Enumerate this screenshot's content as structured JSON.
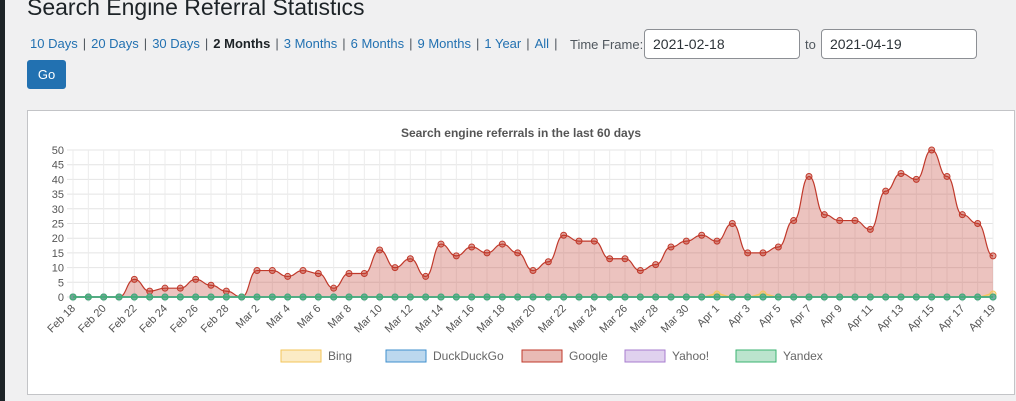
{
  "page": {
    "title": "Search Engine Referral Statistics"
  },
  "range_nav": {
    "links": [
      "10 Days",
      "20 Days",
      "30 Days",
      "2 Months",
      "3 Months",
      "6 Months",
      "9 Months",
      "1 Year",
      "All"
    ],
    "current": "2 Months",
    "separator": "|",
    "timeframe_label": "Time Frame:",
    "from_value": "2021-02-18",
    "to_label": "to",
    "to_value": "2021-04-19",
    "go_label": "Go"
  },
  "colors": {
    "link": "#2271b1",
    "bing": "#f3c65a",
    "duckduckgo": "#3f8fce",
    "google": "#c0392b",
    "yahoo": "#a77ccf",
    "yandex": "#3bb371"
  },
  "chart_data": {
    "type": "area",
    "title": "Search engine referrals in the last 60 days",
    "xlabel": "",
    "ylabel": "",
    "ylim": [
      0,
      50
    ],
    "yticks": [
      0,
      5,
      10,
      15,
      20,
      25,
      30,
      35,
      40,
      45,
      50
    ],
    "grid": true,
    "legend_position": "bottom",
    "x": [
      "2021-02-18",
      "2021-02-19",
      "2021-02-20",
      "2021-02-21",
      "2021-02-22",
      "2021-02-23",
      "2021-02-24",
      "2021-02-25",
      "2021-02-26",
      "2021-02-27",
      "2021-02-28",
      "2021-03-01",
      "2021-03-02",
      "2021-03-03",
      "2021-03-04",
      "2021-03-05",
      "2021-03-06",
      "2021-03-07",
      "2021-03-08",
      "2021-03-09",
      "2021-03-10",
      "2021-03-11",
      "2021-03-12",
      "2021-03-13",
      "2021-03-14",
      "2021-03-15",
      "2021-03-16",
      "2021-03-17",
      "2021-03-18",
      "2021-03-19",
      "2021-03-20",
      "2021-03-21",
      "2021-03-22",
      "2021-03-23",
      "2021-03-24",
      "2021-03-25",
      "2021-03-26",
      "2021-03-27",
      "2021-03-28",
      "2021-03-29",
      "2021-03-30",
      "2021-03-31",
      "2021-04-01",
      "2021-04-02",
      "2021-04-03",
      "2021-04-04",
      "2021-04-05",
      "2021-04-06",
      "2021-04-07",
      "2021-04-08",
      "2021-04-09",
      "2021-04-10",
      "2021-04-11",
      "2021-04-12",
      "2021-04-13",
      "2021-04-14",
      "2021-04-15",
      "2021-04-16",
      "2021-04-17",
      "2021-04-18",
      "2021-04-19"
    ],
    "tick_labels": [
      "Feb 18",
      "Feb 20",
      "Feb 22",
      "Feb 24",
      "Feb 26",
      "Feb 28",
      "Mar 2",
      "Mar 4",
      "Mar 6",
      "Mar 8",
      "Mar 10",
      "Mar 12",
      "Mar 14",
      "Mar 16",
      "Mar 18",
      "Mar 20",
      "Mar 22",
      "Mar 24",
      "Mar 26",
      "Mar 28",
      "Mar 30",
      "Apr 1",
      "Apr 3",
      "Apr 5",
      "Apr 7",
      "Apr 9",
      "Apr 11",
      "Apr 13",
      "Apr 15",
      "Apr 17",
      "Apr 19"
    ],
    "series": [
      {
        "name": "Bing",
        "color_key": "bing",
        "values": [
          0,
          0,
          0,
          0,
          0,
          0,
          0,
          0,
          0,
          0,
          0,
          0,
          0,
          0,
          0,
          0,
          0,
          0,
          0,
          0,
          0,
          0,
          0,
          0,
          0,
          0,
          0,
          0,
          0,
          0,
          0,
          0,
          0,
          0,
          0,
          0,
          0,
          0,
          0,
          0,
          0,
          0,
          1,
          0,
          0,
          1,
          0,
          0,
          0,
          0,
          0,
          0,
          0,
          0,
          0,
          0,
          0,
          0,
          0,
          0,
          1
        ]
      },
      {
        "name": "DuckDuckGo",
        "color_key": "duckduckgo",
        "values": [
          0,
          0,
          0,
          0,
          0,
          0,
          0,
          0,
          0,
          0,
          0,
          0,
          0,
          0,
          0,
          0,
          0,
          0,
          0,
          0,
          0,
          0,
          0,
          0,
          0,
          0,
          0,
          0,
          0,
          0,
          0,
          0,
          0,
          0,
          0,
          0,
          0,
          0,
          0,
          0,
          0,
          0,
          0,
          0,
          0,
          0,
          0,
          0,
          0,
          0,
          0,
          0,
          0,
          0,
          0,
          0,
          0,
          0,
          0,
          0,
          0
        ]
      },
      {
        "name": "Google",
        "color_key": "google",
        "values": [
          0,
          0,
          0,
          0,
          6,
          2,
          3,
          3,
          6,
          4,
          2,
          0,
          9,
          9,
          7,
          9,
          8,
          3,
          8,
          8,
          16,
          10,
          13,
          7,
          18,
          14,
          17,
          15,
          18,
          15,
          9,
          12,
          21,
          19,
          19,
          13,
          13,
          9,
          11,
          17,
          19,
          21,
          19,
          25,
          15,
          15,
          17,
          26,
          41,
          28,
          26,
          26,
          23,
          36,
          42,
          40,
          50,
          41,
          28,
          25,
          14
        ]
      },
      {
        "name": "Yahoo!",
        "color_key": "yahoo",
        "values": [
          0,
          0,
          0,
          0,
          0,
          0,
          0,
          0,
          0,
          0,
          0,
          0,
          0,
          0,
          0,
          0,
          0,
          0,
          0,
          0,
          0,
          0,
          0,
          0,
          0,
          0,
          0,
          0,
          0,
          0,
          0,
          0,
          0,
          0,
          0,
          0,
          0,
          0,
          0,
          0,
          0,
          0,
          0,
          0,
          0,
          0,
          0,
          0,
          0,
          0,
          0,
          0,
          0,
          0,
          0,
          0,
          0,
          0,
          0,
          0,
          0
        ]
      },
      {
        "name": "Yandex",
        "color_key": "yandex",
        "values": [
          0,
          0,
          0,
          0,
          0,
          0,
          0,
          0,
          0,
          0,
          0,
          0,
          0,
          0,
          0,
          0,
          0,
          0,
          0,
          0,
          0,
          0,
          0,
          0,
          0,
          0,
          0,
          0,
          0,
          0,
          0,
          0,
          0,
          0,
          0,
          0,
          0,
          0,
          0,
          0,
          0,
          0,
          0,
          0,
          0,
          0,
          0,
          0,
          0,
          0,
          0,
          0,
          0,
          0,
          0,
          0,
          0,
          0,
          0,
          0,
          0
        ]
      }
    ]
  }
}
